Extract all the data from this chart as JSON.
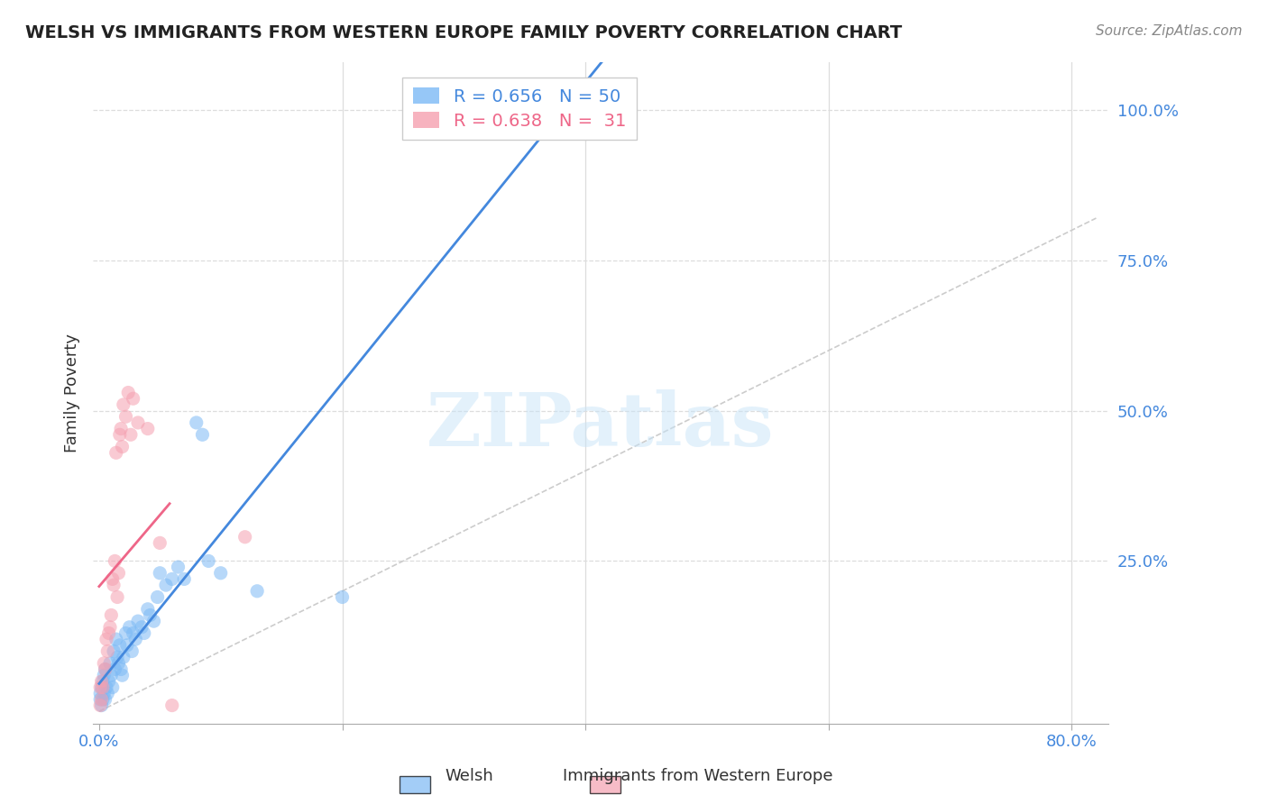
{
  "title": "WELSH VS IMMIGRANTS FROM WESTERN EUROPE FAMILY POVERTY CORRELATION CHART",
  "source": "Source: ZipAtlas.com",
  "ylabel": "Family Poverty",
  "xlim": [
    -0.005,
    0.83
  ],
  "ylim": [
    -0.02,
    1.08
  ],
  "welsh_color": "#7cb9f5",
  "immigrant_color": "#f5a0b0",
  "welsh_R": 0.656,
  "welsh_N": 50,
  "immigrant_R": 0.638,
  "immigrant_N": 31,
  "welsh_scatter": [
    [
      0.001,
      0.02
    ],
    [
      0.001,
      0.03
    ],
    [
      0.002,
      0.01
    ],
    [
      0.002,
      0.04
    ],
    [
      0.003,
      0.02
    ],
    [
      0.003,
      0.05
    ],
    [
      0.004,
      0.03
    ],
    [
      0.004,
      0.06
    ],
    [
      0.005,
      0.02
    ],
    [
      0.005,
      0.07
    ],
    [
      0.006,
      0.04
    ],
    [
      0.007,
      0.03
    ],
    [
      0.008,
      0.05
    ],
    [
      0.009,
      0.08
    ],
    [
      0.01,
      0.06
    ],
    [
      0.011,
      0.04
    ],
    [
      0.012,
      0.1
    ],
    [
      0.013,
      0.07
    ],
    [
      0.014,
      0.12
    ],
    [
      0.015,
      0.09
    ],
    [
      0.016,
      0.08
    ],
    [
      0.017,
      0.11
    ],
    [
      0.018,
      0.07
    ],
    [
      0.019,
      0.06
    ],
    [
      0.02,
      0.09
    ],
    [
      0.022,
      0.13
    ],
    [
      0.023,
      0.11
    ],
    [
      0.025,
      0.14
    ],
    [
      0.027,
      0.1
    ],
    [
      0.028,
      0.13
    ],
    [
      0.03,
      0.12
    ],
    [
      0.032,
      0.15
    ],
    [
      0.035,
      0.14
    ],
    [
      0.037,
      0.13
    ],
    [
      0.04,
      0.17
    ],
    [
      0.042,
      0.16
    ],
    [
      0.045,
      0.15
    ],
    [
      0.048,
      0.19
    ],
    [
      0.05,
      0.23
    ],
    [
      0.055,
      0.21
    ],
    [
      0.06,
      0.22
    ],
    [
      0.065,
      0.24
    ],
    [
      0.07,
      0.22
    ],
    [
      0.08,
      0.48
    ],
    [
      0.085,
      0.46
    ],
    [
      0.09,
      0.25
    ],
    [
      0.1,
      0.23
    ],
    [
      0.13,
      0.2
    ],
    [
      0.2,
      0.19
    ],
    [
      0.31,
      1.0
    ]
  ],
  "immigrant_scatter": [
    [
      0.001,
      0.01
    ],
    [
      0.001,
      0.04
    ],
    [
      0.002,
      0.02
    ],
    [
      0.002,
      0.05
    ],
    [
      0.003,
      0.04
    ],
    [
      0.004,
      0.08
    ],
    [
      0.005,
      0.07
    ],
    [
      0.006,
      0.12
    ],
    [
      0.007,
      0.1
    ],
    [
      0.008,
      0.13
    ],
    [
      0.009,
      0.14
    ],
    [
      0.01,
      0.16
    ],
    [
      0.011,
      0.22
    ],
    [
      0.012,
      0.21
    ],
    [
      0.013,
      0.25
    ],
    [
      0.014,
      0.43
    ],
    [
      0.015,
      0.19
    ],
    [
      0.016,
      0.23
    ],
    [
      0.017,
      0.46
    ],
    [
      0.018,
      0.47
    ],
    [
      0.019,
      0.44
    ],
    [
      0.02,
      0.51
    ],
    [
      0.022,
      0.49
    ],
    [
      0.024,
      0.53
    ],
    [
      0.026,
      0.46
    ],
    [
      0.028,
      0.52
    ],
    [
      0.032,
      0.48
    ],
    [
      0.04,
      0.47
    ],
    [
      0.05,
      0.28
    ],
    [
      0.06,
      0.01
    ],
    [
      0.12,
      0.29
    ]
  ],
  "ref_line_color": "#cccccc",
  "trend_blue": "#4488dd",
  "trend_pink": "#ee6688",
  "legend_label1": "Welsh",
  "legend_label2": "Immigrants from Western Europe",
  "watermark": "ZIPatlas",
  "background_color": "#ffffff",
  "grid_color": "#dddddd"
}
